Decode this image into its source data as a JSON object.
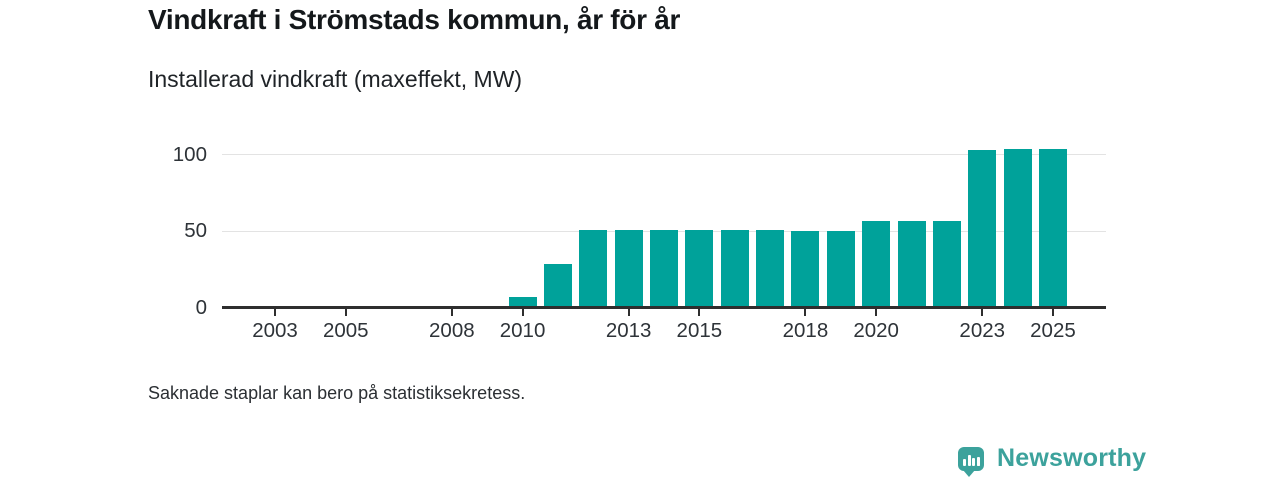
{
  "header": {
    "title": "Vindkraft i Strömstads kommun, år för år",
    "subtitle": "Installerad vindkraft (maxeffekt, MW)"
  },
  "chart_data": {
    "type": "bar",
    "title": "Vindkraft i Strömstads kommun, år för år",
    "subtitle": "Installerad vindkraft (maxeffekt, MW)",
    "xlabel": "",
    "ylabel": "MW",
    "categories": [
      2002,
      2003,
      2004,
      2005,
      2006,
      2007,
      2008,
      2009,
      2010,
      2011,
      2012,
      2013,
      2014,
      2015,
      2016,
      2017,
      2018,
      2019,
      2020,
      2021,
      2022,
      2023,
      2024,
      2025
    ],
    "values": [
      null,
      null,
      null,
      null,
      null,
      null,
      null,
      null,
      7,
      29,
      51,
      51,
      51,
      51,
      51,
      51,
      50,
      50,
      57,
      57,
      57,
      103,
      104,
      104
    ],
    "x_domain": [
      2002,
      2026
    ],
    "xticks": [
      2003,
      2005,
      2008,
      2010,
      2013,
      2015,
      2018,
      2020,
      2023,
      2025
    ],
    "yticks": [
      0,
      50,
      100
    ],
    "ylim": [
      0,
      111
    ],
    "grid": true,
    "legend": "none",
    "bar_color": "#00a29a",
    "grid_color": "#e3e3e3",
    "axis_color": "#2e2e2e"
  },
  "footer": {
    "note": "Saknade staplar kan bero på statistiksekretess."
  },
  "branding": {
    "name": "Newsworthy",
    "color": "#3ca29c",
    "icon": "newsworthy-speech-bubble-bar-chart-icon"
  }
}
